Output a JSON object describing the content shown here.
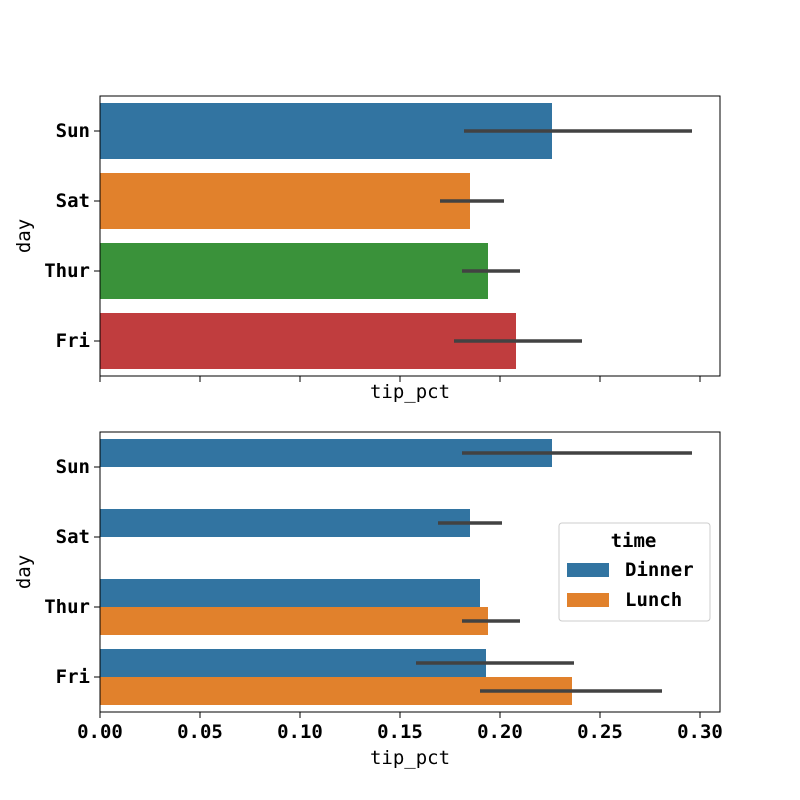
{
  "chart_data": [
    {
      "type": "bar",
      "orientation": "horizontal",
      "categories": [
        "Sun",
        "Sat",
        "Thur",
        "Fri"
      ],
      "values": [
        0.226,
        0.185,
        0.194,
        0.208
      ],
      "ci_low": [
        0.182,
        0.17,
        0.181,
        0.177
      ],
      "ci_high": [
        0.296,
        0.202,
        0.21,
        0.241
      ],
      "bar_colors": [
        "#3274a1",
        "#e1812c",
        "#3a923a",
        "#c03d3e"
      ],
      "xlabel": "tip_pct",
      "ylabel": "day",
      "xlim": [
        0,
        0.31
      ],
      "show_xtick_labels": false
    },
    {
      "type": "bar",
      "orientation": "horizontal",
      "categories": [
        "Sun",
        "Sat",
        "Thur",
        "Fri"
      ],
      "series": [
        {
          "name": "Dinner",
          "color": "#3274a1",
          "values": [
            0.226,
            0.185,
            0.19,
            0.193
          ],
          "ci_low": [
            0.181,
            0.169,
            null,
            0.158
          ],
          "ci_high": [
            0.296,
            0.201,
            null,
            0.237
          ]
        },
        {
          "name": "Lunch",
          "color": "#e1812c",
          "values": [
            null,
            null,
            0.194,
            0.236
          ],
          "ci_low": [
            null,
            null,
            0.181,
            0.19
          ],
          "ci_high": [
            null,
            null,
            0.21,
            0.281
          ]
        }
      ],
      "xlabel": "tip_pct",
      "ylabel": "day",
      "xlim": [
        0,
        0.31
      ],
      "xticks": [
        0.0,
        0.05,
        0.1,
        0.15,
        0.2,
        0.25,
        0.3
      ],
      "xtick_labels": [
        "0.00",
        "0.05",
        "0.10",
        "0.15",
        "0.20",
        "0.25",
        "0.30"
      ],
      "legend": {
        "title": "time",
        "position": "right"
      }
    }
  ]
}
